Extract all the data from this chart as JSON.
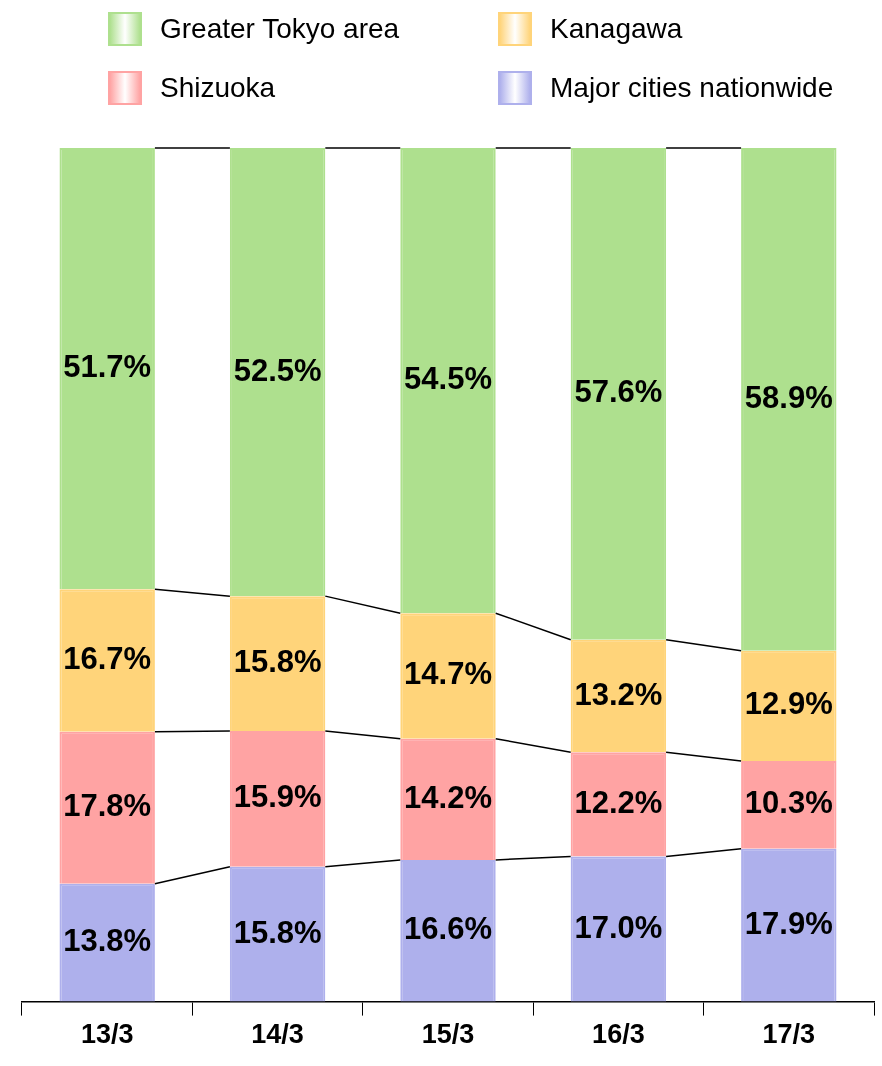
{
  "chart_data": {
    "type": "bar",
    "stacked": true,
    "categories": [
      "13/3",
      "14/3",
      "15/3",
      "16/3",
      "17/3"
    ],
    "series": [
      {
        "name": "Major cities nationwide",
        "color": "#aeb0ec",
        "values": [
          13.8,
          15.8,
          16.6,
          17.0,
          17.9
        ],
        "value_labels": [
          "13.8%",
          "15.8%",
          "16.6%",
          "17.0%",
          "17.9%"
        ]
      },
      {
        "name": "Shizuoka",
        "color": "#ffa3a3",
        "values": [
          17.8,
          15.9,
          14.2,
          12.2,
          10.3
        ],
        "value_labels": [
          "17.8%",
          "15.9%",
          "14.2%",
          "12.2%",
          "10.3%"
        ]
      },
      {
        "name": "Kanagawa",
        "color": "#ffd47a",
        "values": [
          16.7,
          15.8,
          14.7,
          13.2,
          12.9
        ],
        "value_labels": [
          "16.7%",
          "15.8%",
          "14.7%",
          "13.2%",
          "12.9%"
        ]
      },
      {
        "name": "Greater Tokyo area",
        "color": "#aee08e",
        "values": [
          51.7,
          52.5,
          54.5,
          57.6,
          58.9
        ],
        "value_labels": [
          "51.7%",
          "52.5%",
          "54.5%",
          "57.6%",
          "58.9%"
        ]
      }
    ],
    "tick_labels": "x",
    "legend": "top",
    "grid": false
  }
}
